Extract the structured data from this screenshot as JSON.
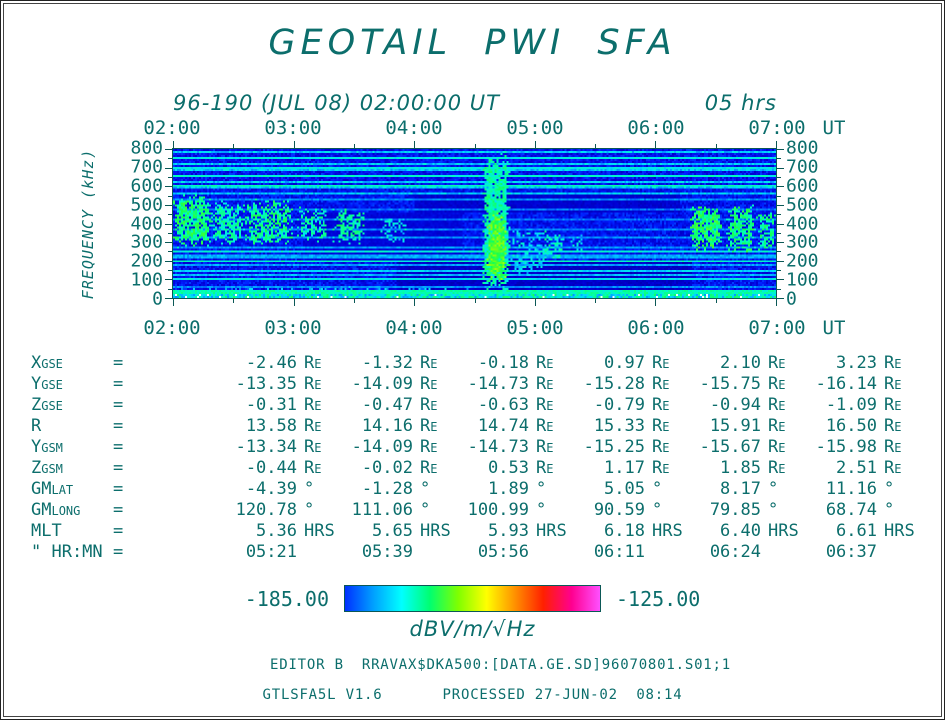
{
  "page": {
    "title": "GEOTAIL PWI SFA",
    "subtitle_left": "96-190 (JUL 08) 02:00:00 UT",
    "subtitle_right": "05 hrs",
    "ut_label": "UT",
    "ylabel": "FREQUENCY (kHz)",
    "text_color": "#0c6e6c"
  },
  "chart_data": {
    "type": "heatmap",
    "title": "GEOTAIL PWI SFA",
    "xlabel": "UT",
    "ylabel": "FREQUENCY (kHz)",
    "x_ticks": [
      "02:00",
      "03:00",
      "04:00",
      "05:00",
      "06:00",
      "07:00"
    ],
    "x_range_hours": [
      2,
      7
    ],
    "y_ticks": [
      800,
      700,
      600,
      500,
      400,
      300,
      200,
      100,
      0
    ],
    "y_range_khz": [
      0,
      800
    ],
    "colorbar": {
      "min_label": "-185.00",
      "max_label": "-125.00",
      "units": "dBV/m/√Hz",
      "gradient": [
        "#0030ff",
        "#00a0ff",
        "#00ffff",
        "#00ff70",
        "#80ff00",
        "#ffff00",
        "#ff9000",
        "#ff2000",
        "#ff0090",
        "#ff50ff"
      ]
    },
    "render": {
      "seed": 77,
      "base": 0.16,
      "noise": 0.07,
      "bottom_band": {
        "f_max": 24,
        "v": 0.42,
        "v_noise": 0.22,
        "white_chance": 0.06
      },
      "top_stripes": {
        "f_min": 555,
        "f_max": 800,
        "spacing": 16,
        "v": 0.36
      },
      "h_lines": [
        {
          "f": 32,
          "v": 0.46
        },
        {
          "f": 56,
          "v": 0.3
        },
        {
          "f": 98,
          "v": 0.4
        },
        {
          "f": 122,
          "v": 0.34
        },
        {
          "f": 148,
          "v": 0.37
        },
        {
          "f": 172,
          "v": 0.32
        },
        {
          "f": 198,
          "v": 0.44
        },
        {
          "f": 224,
          "v": 0.33
        },
        {
          "f": 250,
          "v": 0.42
        },
        {
          "f": 275,
          "v": 0.31
        },
        {
          "f": 322,
          "v": 0.3
        },
        {
          "f": 370,
          "v": 0.29
        },
        {
          "f": 424,
          "v": 0.28
        },
        {
          "f": 478,
          "v": 0.28
        },
        {
          "f": 530,
          "v": 0.3
        },
        {
          "f": 600,
          "v": 0.45
        },
        {
          "f": 652,
          "v": 0.43
        },
        {
          "f": 700,
          "v": 0.4
        },
        {
          "f": 752,
          "v": 0.4
        }
      ],
      "dark_regions": [
        {
          "t": [
            3.85,
            6.3
          ],
          "f": [
            40,
            190
          ],
          "v": 0.09
        },
        {
          "t": [
            4.0,
            6.2
          ],
          "f": [
            460,
            555
          ],
          "v": 0.1
        },
        {
          "t": [
            3.1,
            4.4
          ],
          "f": [
            200,
            460
          ],
          "v": 0.12
        }
      ],
      "blobs": [
        {
          "t": [
            2.0,
            2.32
          ],
          "f": [
            270,
            560
          ],
          "v": 0.5,
          "d": 0.85
        },
        {
          "t": [
            2.3,
            2.6
          ],
          "f": [
            290,
            520
          ],
          "v": 0.46,
          "d": 0.6
        },
        {
          "t": [
            2.58,
            3.0
          ],
          "f": [
            275,
            530
          ],
          "v": 0.49,
          "d": 0.7
        },
        {
          "t": [
            3.02,
            3.3
          ],
          "f": [
            300,
            490
          ],
          "v": 0.45,
          "d": 0.55
        },
        {
          "t": [
            3.32,
            3.6
          ],
          "f": [
            285,
            480
          ],
          "v": 0.47,
          "d": 0.6
        },
        {
          "t": [
            3.72,
            3.95
          ],
          "f": [
            300,
            440
          ],
          "v": 0.4,
          "d": 0.4
        },
        {
          "t": [
            2.0,
            4.5
          ],
          "f": [
            18,
            60
          ],
          "v": 0.33,
          "d": 0.35
        },
        {
          "t": [
            4.56,
            4.8
          ],
          "f": [
            0,
            800
          ],
          "v": 0.46,
          "d": 0.9
        },
        {
          "t": [
            4.6,
            4.77
          ],
          "f": [
            80,
            470
          ],
          "v": 0.58,
          "d": 0.95
        },
        {
          "t": [
            4.8,
            5.08
          ],
          "f": [
            120,
            380
          ],
          "v": 0.38,
          "d": 0.45
        },
        {
          "t": [
            5.06,
            5.24
          ],
          "f": [
            210,
            370
          ],
          "v": 0.44,
          "d": 0.5
        },
        {
          "t": [
            5.3,
            5.42
          ],
          "f": [
            240,
            340
          ],
          "v": 0.4,
          "d": 0.4
        },
        {
          "t": [
            6.28,
            6.56
          ],
          "f": [
            255,
            505
          ],
          "v": 0.52,
          "d": 0.8
        },
        {
          "t": [
            6.58,
            6.84
          ],
          "f": [
            240,
            500
          ],
          "v": 0.5,
          "d": 0.7
        },
        {
          "t": [
            6.84,
            7.0
          ],
          "f": [
            255,
            465
          ],
          "v": 0.48,
          "d": 0.65
        }
      ]
    }
  },
  "ephemeris": {
    "eq_sign": "=",
    "rows": [
      {
        "label": "Xgse",
        "unit": "Re",
        "values": [
          "-2.46",
          "-1.32",
          "-0.18",
          "0.97",
          "2.10",
          "3.23"
        ]
      },
      {
        "label": "Ygse",
        "unit": "Re",
        "values": [
          "-13.35",
          "-14.09",
          "-14.73",
          "-15.28",
          "-15.75",
          "-16.14"
        ]
      },
      {
        "label": "Zgse",
        "unit": "Re",
        "values": [
          "-0.31",
          "-0.47",
          "-0.63",
          "-0.79",
          "-0.94",
          "-1.09"
        ]
      },
      {
        "label": "R",
        "unit": "Re",
        "values": [
          "13.58",
          "14.16",
          "14.74",
          "15.33",
          "15.91",
          "16.50"
        ]
      },
      {
        "label": "Ygsm",
        "unit": "Re",
        "values": [
          "-13.34",
          "-14.09",
          "-14.73",
          "-15.25",
          "-15.67",
          "-15.98"
        ]
      },
      {
        "label": "Zgsm",
        "unit": "Re",
        "values": [
          "-0.44",
          "-0.02",
          "0.53",
          "1.17",
          "1.85",
          "2.51"
        ]
      },
      {
        "label": "GMlat",
        "unit": "°",
        "values": [
          "-4.39",
          "-1.28",
          "1.89",
          "5.05",
          "8.17",
          "11.16"
        ]
      },
      {
        "label": "GMlong",
        "unit": "°",
        "values": [
          "120.78",
          "111.06",
          "100.99",
          "90.59",
          "79.85",
          "68.74"
        ]
      },
      {
        "label": "MLT",
        "unit": "HRS",
        "values": [
          "5.36",
          "5.65",
          "5.93",
          "6.18",
          "6.40",
          "6.61"
        ]
      },
      {
        "label": "\" HR:MN",
        "unit": "",
        "values": [
          "05:21",
          "05:39",
          "05:56",
          "06:11",
          "06:24",
          "06:37"
        ]
      }
    ]
  },
  "footer": {
    "editor": "EDITOR B",
    "file": "RRAVAX$DKA500:[DATA.GE.SD]96070801.S01;1",
    "version": "GTLSFA5L V1.6",
    "processed": "PROCESSED 27-JUN-02  08:14"
  }
}
